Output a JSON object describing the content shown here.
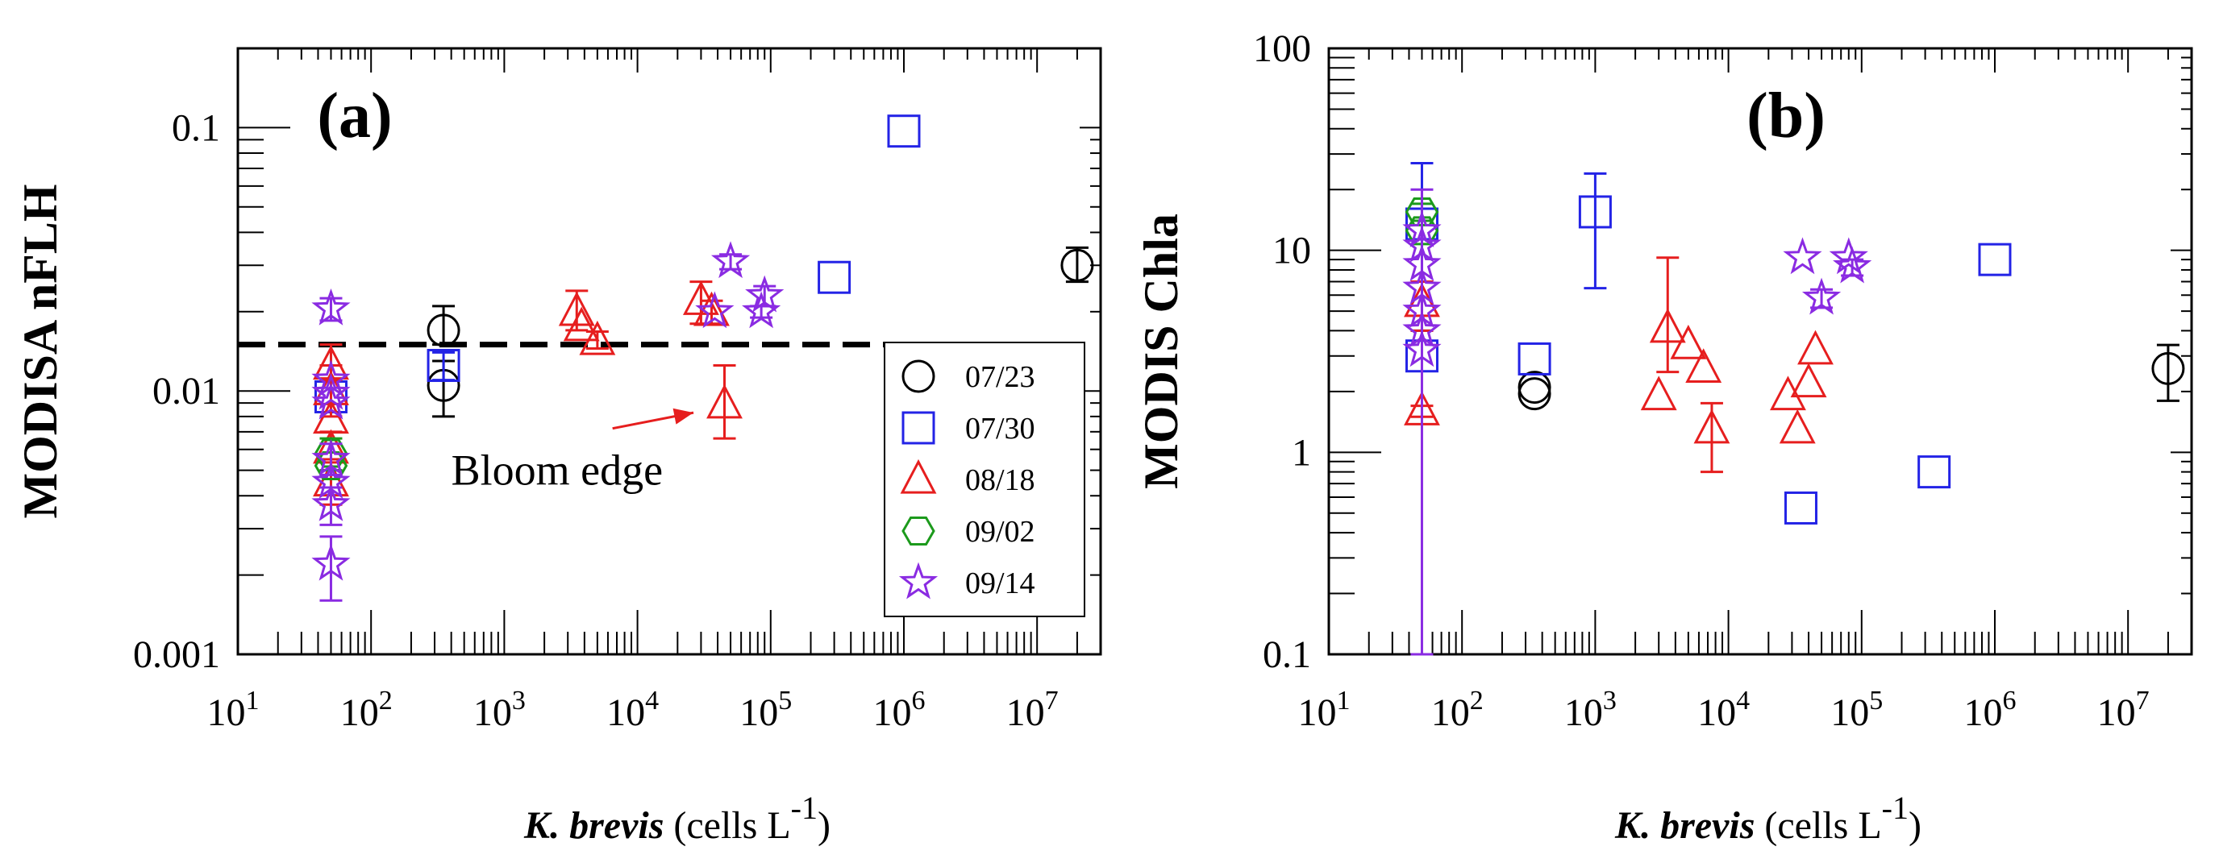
{
  "chart_data": [
    {
      "type": "scatter",
      "panel": "(a)",
      "ylabel": "MODISA nFLH",
      "xlabel_italic": "K. brevis",
      "xlabel_unit": "(cells L",
      "xlabel_exp": "-1",
      "xlabel_close": ")",
      "xscale": "log",
      "yscale": "log",
      "xlim": [
        10,
        30000000
      ],
      "ylim": [
        0.001,
        0.2
      ],
      "x_ticks": [
        {
          "value": 10,
          "base": "10",
          "exp": "1"
        },
        {
          "value": 100,
          "base": "10",
          "exp": "2"
        },
        {
          "value": 1000,
          "base": "10",
          "exp": "3"
        },
        {
          "value": 10000,
          "base": "10",
          "exp": "4"
        },
        {
          "value": 100000,
          "base": "10",
          "exp": "5"
        },
        {
          "value": 1000000,
          "base": "10",
          "exp": "6"
        },
        {
          "value": 10000000,
          "base": "10",
          "exp": "7"
        }
      ],
      "y_ticks": [
        {
          "value": 0.001,
          "label": "0.001"
        },
        {
          "value": 0.01,
          "label": "0.01"
        },
        {
          "value": 0.1,
          "label": "0.1"
        }
      ],
      "threshold": 0.015,
      "annotation": {
        "text": "Bloom edge",
        "target": [
          40000,
          0.009
        ],
        "text_at": [
          400,
          0.0044
        ]
      },
      "legend": [
        {
          "label": "07/23",
          "marker": "circle",
          "color": "#000000"
        },
        {
          "label": "07/30",
          "marker": "square",
          "color": "#2323e6"
        },
        {
          "label": "08/18",
          "marker": "triangle",
          "color": "#e61e1e"
        },
        {
          "label": "09/02",
          "marker": "hexagon",
          "color": "#1c9a1c"
        },
        {
          "label": "09/14",
          "marker": "star",
          "color": "#8a2be2"
        }
      ],
      "series": [
        {
          "name": "07/23",
          "points": [
            {
              "x": 350,
              "y": 0.0105,
              "ylo": 0.008,
              "yhi": 0.013
            },
            {
              "x": 350,
              "y": 0.017,
              "ylo": 0.015,
              "yhi": 0.021
            },
            {
              "x": 20000000,
              "y": 0.03,
              "ylo": 0.026,
              "yhi": 0.035
            }
          ]
        },
        {
          "name": "07/30",
          "points": [
            {
              "x": 50,
              "y": 0.0095
            },
            {
              "x": 350,
              "y": 0.0125,
              "ylo": 0.011,
              "yhi": 0.014
            },
            {
              "x": 300000,
              "y": 0.027
            },
            {
              "x": 1000000,
              "y": 0.097
            }
          ]
        },
        {
          "name": "08/18",
          "points": [
            {
              "x": 50,
              "y": 0.0125,
              "ylo": 0.011,
              "yhi": 0.015
            },
            {
              "x": 50,
              "y": 0.01,
              "ylo": 0.008,
              "yhi": 0.0125
            },
            {
              "x": 50,
              "y": 0.0078
            },
            {
              "x": 50,
              "y": 0.006,
              "ylo": 0.005,
              "yhi": 0.007
            },
            {
              "x": 50,
              "y": 0.0045,
              "ylo": 0.0037,
              "yhi": 0.0055
            },
            {
              "x": 3500,
              "y": 0.02,
              "ylo": 0.017,
              "yhi": 0.024
            },
            {
              "x": 3800,
              "y": 0.0175
            },
            {
              "x": 5000,
              "y": 0.0155,
              "ylo": 0.0145,
              "yhi": 0.0168
            },
            {
              "x": 30000,
              "y": 0.022,
              "ylo": 0.018,
              "yhi": 0.026
            },
            {
              "x": 36000,
              "y": 0.02,
              "ylo": 0.018,
              "yhi": 0.022
            },
            {
              "x": 45000,
              "y": 0.0089,
              "ylo": 0.0066,
              "yhi": 0.0125
            }
          ]
        },
        {
          "name": "09/02",
          "points": [
            {
              "x": 50,
              "y": 0.0058,
              "ylo": 0.005,
              "yhi": 0.0066
            },
            {
              "x": 50,
              "y": 0.0052
            }
          ]
        },
        {
          "name": "09/14",
          "points": [
            {
              "x": 50,
              "y": 0.0205,
              "ylo": 0.0185,
              "yhi": 0.0225
            },
            {
              "x": 50,
              "y": 0.011
            },
            {
              "x": 50,
              "y": 0.0098
            },
            {
              "x": 50,
              "y": 0.009
            },
            {
              "x": 50,
              "y": 0.0055,
              "ylo": 0.0048,
              "yhi": 0.0063
            },
            {
              "x": 50,
              "y": 0.0045
            },
            {
              "x": 50,
              "y": 0.0037,
              "ylo": 0.0031,
              "yhi": 0.0043
            },
            {
              "x": 50,
              "y": 0.0022,
              "ylo": 0.0016,
              "yhi": 0.0028
            },
            {
              "x": 38000,
              "y": 0.02
            },
            {
              "x": 50000,
              "y": 0.031,
              "ylo": 0.029,
              "yhi": 0.033
            },
            {
              "x": 90000,
              "y": 0.023,
              "ylo": 0.021,
              "yhi": 0.025
            },
            {
              "x": 85000,
              "y": 0.02,
              "ylo": 0.019,
              "yhi": 0.021
            }
          ]
        }
      ]
    },
    {
      "type": "scatter",
      "panel": "(b)",
      "ylabel": "MODIS Chla",
      "xlabel_italic": "K. brevis",
      "xlabel_unit": "(cells L",
      "xlabel_exp": "-1",
      "xlabel_close": ")",
      "xscale": "log",
      "yscale": "log",
      "xlim": [
        10,
        30000000
      ],
      "ylim": [
        0.1,
        100
      ],
      "x_ticks": [
        {
          "value": 10,
          "base": "10",
          "exp": "1"
        },
        {
          "value": 100,
          "base": "10",
          "exp": "2"
        },
        {
          "value": 1000,
          "base": "10",
          "exp": "3"
        },
        {
          "value": 10000,
          "base": "10",
          "exp": "4"
        },
        {
          "value": 100000,
          "base": "10",
          "exp": "5"
        },
        {
          "value": 1000000,
          "base": "10",
          "exp": "6"
        },
        {
          "value": 10000000,
          "base": "10",
          "exp": "7"
        }
      ],
      "y_ticks": [
        {
          "value": 0.1,
          "label": "0.1"
        },
        {
          "value": 1,
          "label": "1"
        },
        {
          "value": 10,
          "label": "10"
        },
        {
          "value": 100,
          "label": "100"
        }
      ],
      "series": [
        {
          "name": "07/23",
          "points": [
            {
              "x": 350,
              "y": 2.1
            },
            {
              "x": 350,
              "y": 1.95
            },
            {
              "x": 20000000,
              "y": 2.6,
              "ylo": 1.8,
              "yhi": 3.4
            }
          ]
        },
        {
          "name": "07/30",
          "points": [
            {
              "x": 50,
              "y": 3.0
            },
            {
              "x": 50,
              "y": 13.5,
              "ylo": 4.0,
              "yhi": 27
            },
            {
              "x": 350,
              "y": 2.9
            },
            {
              "x": 1000,
              "y": 15.5,
              "ylo": 6.5,
              "yhi": 24
            },
            {
              "x": 35000,
              "y": 0.53
            },
            {
              "x": 350000,
              "y": 0.8
            },
            {
              "x": 1000000,
              "y": 9.0
            }
          ]
        },
        {
          "name": "08/18",
          "points": [
            {
              "x": 50,
              "y": 1.6,
              "ylo": 1.5,
              "yhi": 1.7
            },
            {
              "x": 50,
              "y": 5.5,
              "ylo": 4.0,
              "yhi": 7.0
            },
            {
              "x": 3000,
              "y": 1.9
            },
            {
              "x": 3500,
              "y": 4.1,
              "ylo": 2.5,
              "yhi": 9.2
            },
            {
              "x": 5000,
              "y": 3.4
            },
            {
              "x": 6500,
              "y": 2.6
            },
            {
              "x": 7500,
              "y": 1.3,
              "ylo": 0.8,
              "yhi": 1.75
            },
            {
              "x": 28000,
              "y": 1.9
            },
            {
              "x": 33000,
              "y": 1.3
            },
            {
              "x": 40000,
              "y": 2.2
            },
            {
              "x": 45000,
              "y": 3.2
            }
          ]
        },
        {
          "name": "09/02",
          "points": [
            {
              "x": 50,
              "y": 15.5,
              "ylo": 14,
              "yhi": 17
            },
            {
              "x": 50,
              "y": 12.5
            }
          ]
        },
        {
          "name": "09/14",
          "points": [
            {
              "x": 50,
              "y": 12.5,
              "ylo": 0.1,
              "yhi": 20
            },
            {
              "x": 50,
              "y": 10.5
            },
            {
              "x": 50,
              "y": 8.5
            },
            {
              "x": 50,
              "y": 6.5
            },
            {
              "x": 50,
              "y": 5.0
            },
            {
              "x": 50,
              "y": 4.0
            },
            {
              "x": 50,
              "y": 3.2
            },
            {
              "x": 36000,
              "y": 9.2
            },
            {
              "x": 50000,
              "y": 5.8,
              "ylo": 5.2,
              "yhi": 6.4
            },
            {
              "x": 80000,
              "y": 9.2
            },
            {
              "x": 85000,
              "y": 8.3,
              "ylo": 7.5,
              "yhi": 9.0
            }
          ]
        }
      ]
    }
  ]
}
